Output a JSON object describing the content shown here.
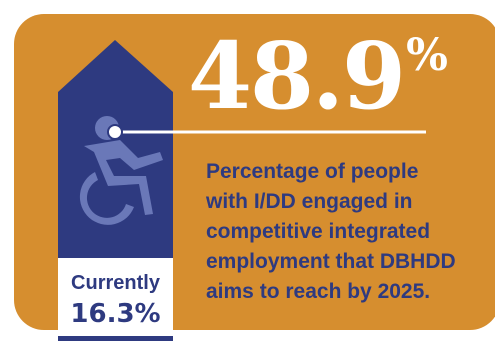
{
  "headline": {
    "value": "48.9",
    "unit": "%"
  },
  "description": "Percentage of people\nwith I/DD engaged in\ncompetitive integrated\nemployment that DBHDD\naims to reach by 2025.",
  "current": {
    "label": "Currently",
    "value": "16.3%"
  },
  "colors": {
    "background": "#d68e2f",
    "banner": "#2e3a80",
    "icon": "#6a78b8",
    "text_light": "#ffffff",
    "text_dark": "#2e3a80"
  },
  "icons": {
    "banner_icon": "accessible-wheelchair-icon"
  }
}
